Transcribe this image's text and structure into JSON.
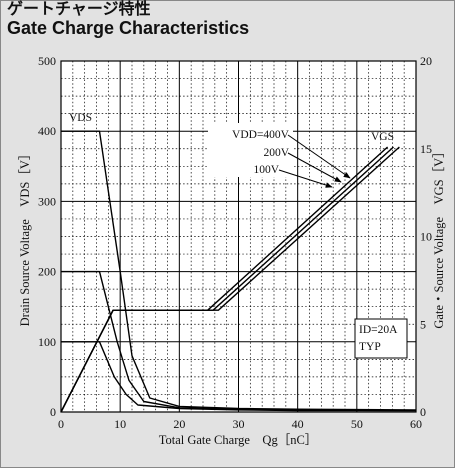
{
  "page": {
    "title_jp": "ゲートチャージ特性",
    "title_en": "Gate Charge Characteristics"
  },
  "chart_data": {
    "type": "line",
    "title": "Gate Charge Characteristics",
    "xlabel": "Total Gate Charge　Qg［nC］",
    "ylabel_left": "Drain Source Voltage　VDS［V］",
    "ylabel_right": "Gate・Source Voltage　VGS［V］",
    "xlim": [
      0,
      60
    ],
    "ylim_left": [
      0,
      500
    ],
    "ylim_right": [
      0,
      20
    ],
    "x_ticks": [
      0,
      10,
      20,
      30,
      40,
      50,
      60
    ],
    "y_left_ticks": [
      0,
      100,
      200,
      300,
      400,
      500
    ],
    "y_right_ticks": [
      0,
      5,
      10,
      15,
      20
    ],
    "grid": true,
    "series": [
      {
        "name": "VDS",
        "condition": "VDD=400V",
        "axis": "left",
        "x": [
          0,
          6.5,
          10,
          12,
          15,
          20,
          30,
          40,
          60
        ],
        "y": [
          400,
          400,
          200,
          80,
          20,
          8,
          5,
          4,
          3
        ]
      },
      {
        "name": "VDS",
        "condition": "VDD=200V",
        "axis": "left",
        "x": [
          0,
          6.5,
          9.5,
          11.5,
          14,
          20,
          30,
          40,
          60
        ],
        "y": [
          200,
          200,
          100,
          45,
          15,
          6,
          4,
          3,
          2
        ]
      },
      {
        "name": "VDS",
        "condition": "VDD=100V",
        "axis": "left",
        "x": [
          0,
          6.5,
          9,
          11,
          13,
          20,
          30,
          40,
          60
        ],
        "y": [
          100,
          100,
          50,
          25,
          10,
          5,
          3,
          2,
          2
        ]
      },
      {
        "name": "VGS",
        "condition": "VDD=100V",
        "axis": "right",
        "x": [
          0,
          8.8,
          24.8,
          55.2
        ],
        "y": [
          0,
          5.8,
          5.8,
          15.1
        ]
      },
      {
        "name": "VGS",
        "condition": "VDD=200V",
        "axis": "right",
        "x": [
          0,
          8.8,
          25.7,
          56.2
        ],
        "y": [
          0,
          5.8,
          5.8,
          15.1
        ]
      },
      {
        "name": "VGS",
        "condition": "VDD=400V",
        "axis": "right",
        "x": [
          0,
          8.8,
          26.6,
          57.2
        ],
        "y": [
          0,
          5.8,
          5.8,
          15.1
        ]
      }
    ],
    "annotations": {
      "vds_label": "VDS",
      "vgs_label": "VGS",
      "vdd_400": "VDD=400V",
      "vdd_200": "200V",
      "vdd_100": "100V",
      "condition_id": "ID=20A",
      "condition_typ": "TYP"
    }
  }
}
